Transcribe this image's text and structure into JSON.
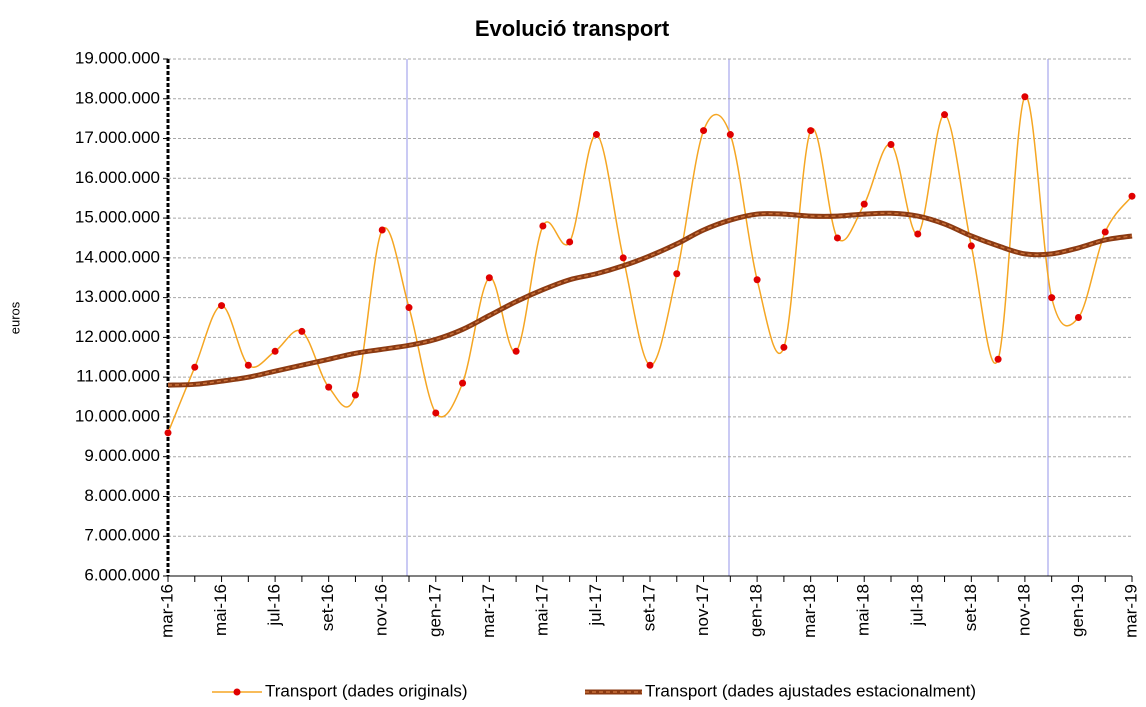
{
  "chart_data": {
    "type": "line",
    "title": "Evolució transport",
    "y_label": "euros",
    "categories": [
      "mar-16",
      null,
      "mai-16",
      null,
      "jul-16",
      null,
      "set-16",
      null,
      "nov-16",
      null,
      "gen-17",
      null,
      "mar-17",
      null,
      "mai-17",
      null,
      "jul-17",
      null,
      "set-17",
      null,
      "nov-17",
      null,
      "gen-18",
      null,
      "mar-18",
      null,
      "mai-18",
      null,
      "jul-18",
      null,
      "set-18",
      null,
      "nov-18",
      null,
      "gen-19",
      null,
      "mar-19"
    ],
    "series": [
      {
        "name": "Transport (dades originals)",
        "color": "#f5a623",
        "marker_color": "#e00000",
        "values": [
          9600000,
          11250000,
          12800000,
          11300000,
          11650000,
          12150000,
          10750000,
          10550000,
          14700000,
          12750000,
          10100000,
          10850000,
          13500000,
          11650000,
          14800000,
          14400000,
          17100000,
          14000000,
          11300000,
          13600000,
          17200000,
          17100000,
          13450000,
          11750000,
          17200000,
          14500000,
          15350000,
          16850000,
          14600000,
          17600000,
          14300000,
          11450000,
          18050000,
          13000000,
          12500000,
          14650000,
          15550000
        ]
      },
      {
        "name": "Transport (dades ajustades estacionalment)",
        "color": "#8b3a12",
        "values": [
          10800000,
          10820000,
          10900000,
          11000000,
          11150000,
          11300000,
          11450000,
          11600000,
          11700000,
          11800000,
          11950000,
          12200000,
          12550000,
          12900000,
          13200000,
          13450000,
          13600000,
          13800000,
          14050000,
          14350000,
          14700000,
          14950000,
          15100000,
          15100000,
          15050000,
          15050000,
          15100000,
          15120000,
          15050000,
          14850000,
          14550000,
          14300000,
          14100000,
          14100000,
          14250000,
          14450000,
          14550000
        ]
      }
    ],
    "ylim": [
      6000000,
      19000000
    ],
    "yticks": [
      {
        "value": 6000000,
        "label": "6.000.000"
      },
      {
        "value": 7000000,
        "label": "7.000.000"
      },
      {
        "value": 8000000,
        "label": "8.000.000"
      },
      {
        "value": 9000000,
        "label": "9.000.000"
      },
      {
        "value": 10000000,
        "label": "10.000.000"
      },
      {
        "value": 11000000,
        "label": "11.000.000"
      },
      {
        "value": 12000000,
        "label": "12.000.000"
      },
      {
        "value": 13000000,
        "label": "13.000.000"
      },
      {
        "value": 14000000,
        "label": "14.000.000"
      },
      {
        "value": 15000000,
        "label": "15.000.000"
      },
      {
        "value": 16000000,
        "label": "16.000.000"
      },
      {
        "value": 17000000,
        "label": "17.000.000"
      },
      {
        "value": 18000000,
        "label": "18.000.000"
      },
      {
        "value": 19000000,
        "label": "19.000.000"
      }
    ],
    "grid": true,
    "legend": "bottom"
  }
}
